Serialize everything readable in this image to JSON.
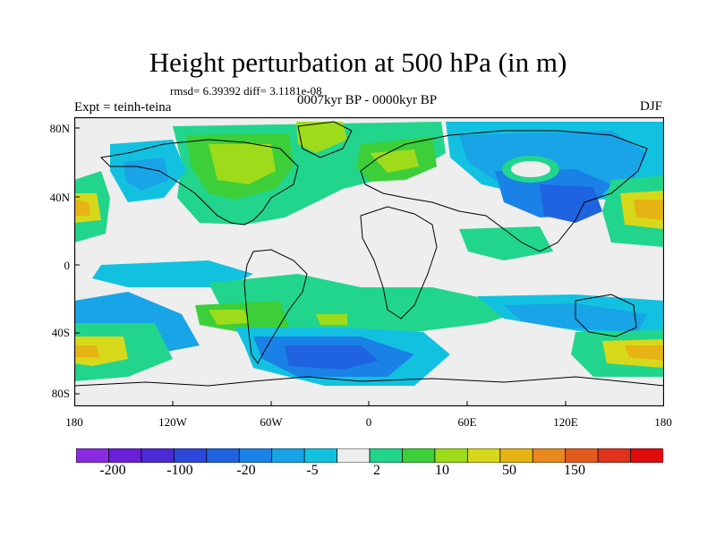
{
  "title": "Height perturbation at 500 hPa (in m)",
  "stats": "rmsd= 6.39392 diff= 3.1181e-08",
  "period": "0007kyr BP - 0000kyr BP",
  "experiment": "Expt = teinh-teina",
  "season": "DJF",
  "axes": {
    "lat_labels": [
      "80N",
      "40N",
      "0",
      "40S",
      "80S"
    ],
    "lon_labels": [
      "180",
      "120W",
      "60W",
      "0",
      "60E",
      "120E",
      "180"
    ]
  },
  "colorbar": {
    "colors": [
      "#8a2be2",
      "#6a1fd8",
      "#4b2bd6",
      "#2c46d9",
      "#1f63e0",
      "#1a82e6",
      "#18a4e6",
      "#12c1e0",
      "#eeeeee",
      "#22d58c",
      "#3ccf3a",
      "#9edb1b",
      "#d8d81a",
      "#e6b314",
      "#e9891e",
      "#e35a1d",
      "#e0321c",
      "#e00c0c"
    ],
    "labels": [
      "-200",
      "-100",
      "-20",
      "-5",
      "2",
      "10",
      "50",
      "150"
    ]
  },
  "palette": {
    "light_green": "#22d58c",
    "green": "#3ccf3a",
    "yellow_green": "#9edb1b",
    "yellow": "#d8d81a",
    "orange": "#e6b314",
    "cyan": "#12c1e0",
    "light_blue": "#18a4e6",
    "blue": "#1a82e6",
    "dark_blue": "#1f63e0",
    "background": "#eeeeee"
  }
}
